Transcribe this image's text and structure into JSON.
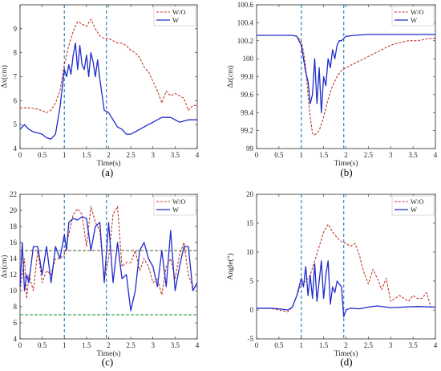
{
  "colors": {
    "wo": "#c0392b",
    "w": "#1f2ccc",
    "vline": "#2e86c1",
    "green": "#1e8c2e",
    "olive": "#4d5a1f",
    "axis": "#262626"
  },
  "chart_data": [
    {
      "type": "line",
      "caption": "(a)",
      "xlabel": "Time(s)",
      "ylabel": "Δx(cm)",
      "xlim": [
        0,
        4
      ],
      "ylim": [
        4,
        10
      ],
      "xticks": [
        "0",
        "0.5",
        "1",
        "1.5",
        "2",
        "2.5",
        "3",
        "3.5",
        "4"
      ],
      "yticks": [
        "4",
        "5",
        "6",
        "7",
        "8",
        "9"
      ],
      "legend_position": "top-right",
      "vlines": [
        1,
        1.95
      ],
      "series": [
        {
          "name": "W/O",
          "style": "dashed",
          "x": [
            0,
            0.2,
            0.4,
            0.6,
            0.7,
            0.8,
            0.9,
            1.0,
            1.1,
            1.2,
            1.3,
            1.4,
            1.5,
            1.6,
            1.7,
            1.8,
            1.9,
            2.0,
            2.1,
            2.2,
            2.3,
            2.4,
            2.5,
            2.6,
            2.7,
            2.8,
            2.9,
            3.0,
            3.1,
            3.2,
            3.3,
            3.4,
            3.5,
            3.6,
            3.7,
            3.8,
            3.9,
            4.0
          ],
          "y": [
            5.7,
            5.7,
            5.65,
            5.5,
            5.6,
            5.9,
            6.4,
            7.5,
            8.3,
            8.9,
            9.3,
            9.2,
            9.1,
            9.4,
            9.0,
            8.7,
            8.6,
            8.6,
            8.5,
            8.4,
            8.4,
            8.3,
            8.1,
            8.0,
            7.8,
            7.4,
            7.2,
            6.8,
            6.4,
            5.9,
            6.4,
            6.2,
            6.3,
            6.2,
            6.1,
            5.6,
            5.8,
            5.8
          ]
        },
        {
          "name": "W",
          "style": "solid",
          "x": [
            0,
            0.1,
            0.2,
            0.3,
            0.5,
            0.6,
            0.7,
            0.8,
            0.9,
            1.0,
            1.05,
            1.1,
            1.15,
            1.2,
            1.25,
            1.3,
            1.35,
            1.4,
            1.45,
            1.5,
            1.55,
            1.6,
            1.65,
            1.7,
            1.75,
            1.8,
            1.9,
            2.0,
            2.1,
            2.2,
            2.3,
            2.4,
            2.5,
            2.6,
            2.8,
            3.0,
            3.2,
            3.4,
            3.6,
            3.8,
            4.0
          ],
          "y": [
            4.8,
            5.0,
            4.8,
            4.7,
            4.6,
            4.45,
            4.4,
            4.6,
            5.7,
            7.3,
            7.0,
            7.5,
            7.1,
            7.9,
            8.4,
            7.3,
            8.3,
            7.5,
            7.3,
            7.9,
            7.0,
            8.0,
            7.6,
            7.0,
            7.7,
            6.9,
            5.6,
            5.5,
            5.2,
            4.9,
            4.8,
            4.6,
            4.6,
            4.7,
            4.9,
            5.1,
            5.3,
            5.3,
            5.1,
            5.2,
            5.2
          ]
        }
      ]
    },
    {
      "type": "line",
      "caption": "(b)",
      "xlabel": "Time(s)",
      "ylabel": "Δz(cm)",
      "xlim": [
        0,
        4
      ],
      "ylim": [
        99,
        100.6
      ],
      "xticks": [
        "0",
        "0.5",
        "1",
        "1.5",
        "2",
        "2.5",
        "3",
        "3.5",
        "4"
      ],
      "yticks": [
        "99",
        "99.2",
        "99.4",
        "99.6",
        "99.8",
        "100",
        "100.2",
        "100.4",
        "100.6"
      ],
      "legend_position": "top-right",
      "vlines": [
        1,
        1.95
      ],
      "series": [
        {
          "name": "W/O",
          "style": "dashed",
          "x": [
            0,
            0.5,
            0.8,
            0.9,
            1.0,
            1.05,
            1.1,
            1.15,
            1.2,
            1.25,
            1.3,
            1.4,
            1.5,
            1.6,
            1.7,
            1.8,
            1.9,
            2.0,
            2.2,
            2.4,
            2.6,
            2.8,
            3.0,
            3.2,
            3.4,
            3.6,
            3.8,
            4.0
          ],
          "y": [
            100.26,
            100.26,
            100.26,
            100.25,
            100.19,
            100.08,
            99.9,
            99.6,
            99.35,
            99.17,
            99.15,
            99.2,
            99.35,
            99.55,
            99.7,
            99.8,
            99.87,
            99.9,
            99.95,
            100.0,
            100.05,
            100.1,
            100.15,
            100.18,
            100.2,
            100.2,
            100.22,
            100.23
          ]
        },
        {
          "name": "W",
          "style": "solid",
          "x": [
            0,
            0.5,
            0.8,
            0.9,
            1.0,
            1.05,
            1.1,
            1.15,
            1.2,
            1.25,
            1.3,
            1.35,
            1.4,
            1.45,
            1.5,
            1.55,
            1.6,
            1.65,
            1.7,
            1.75,
            1.8,
            1.85,
            1.9,
            2.0,
            2.2,
            2.5,
            3.0,
            3.5,
            4.0
          ],
          "y": [
            100.26,
            100.26,
            100.26,
            100.25,
            100.15,
            100.0,
            99.85,
            99.75,
            99.5,
            99.6,
            100.0,
            99.5,
            99.9,
            99.4,
            99.8,
            99.7,
            100.0,
            99.9,
            100.1,
            100.0,
            100.15,
            100.2,
            100.2,
            100.25,
            100.26,
            100.27,
            100.27,
            100.27,
            100.27
          ]
        }
      ]
    },
    {
      "type": "line",
      "caption": "(c)",
      "xlabel": "Time(s)",
      "ylabel": "Δx(cm)",
      "xlim": [
        0,
        4
      ],
      "ylim": [
        4,
        22
      ],
      "xticks": [
        "0",
        "0.5",
        "1",
        "1.5",
        "2",
        "2.5",
        "3",
        "3.5",
        "4"
      ],
      "yticks": [
        "4",
        "6",
        "8",
        "10",
        "12",
        "14",
        "16",
        "18",
        "20",
        "22"
      ],
      "legend_position": "top-right",
      "vlines": [
        1,
        1.95
      ],
      "hlines": [
        {
          "y": 15,
          "color": "olive"
        },
        {
          "y": 7,
          "color": "green"
        }
      ],
      "series": [
        {
          "name": "W/O",
          "style": "dashed",
          "x": [
            0,
            0.1,
            0.15,
            0.2,
            0.3,
            0.4,
            0.5,
            0.6,
            0.7,
            0.8,
            0.9,
            1.0,
            1.1,
            1.2,
            1.3,
            1.4,
            1.5,
            1.6,
            1.7,
            1.8,
            1.9,
            2.0,
            2.1,
            2.2,
            2.3,
            2.4,
            2.5,
            2.6,
            2.7,
            2.8,
            2.9,
            3.0,
            3.1,
            3.2,
            3.3,
            3.4,
            3.5,
            3.6,
            3.7,
            3.8,
            3.9,
            4.0
          ],
          "y": [
            10,
            14,
            9,
            12,
            10,
            15,
            11,
            12.5,
            12,
            14,
            14,
            14.5,
            17,
            19.5,
            20.2,
            19.5,
            15.5,
            20.5,
            18.5,
            17.5,
            11.5,
            14,
            19.5,
            20.5,
            13,
            13.5,
            13.5,
            15,
            12.5,
            14,
            13,
            11,
            11.5,
            9.5,
            13,
            14,
            11.5,
            14.5,
            16,
            12,
            10.5,
            10.5
          ]
        },
        {
          "name": "W",
          "style": "solid",
          "x": [
            0,
            0.05,
            0.1,
            0.15,
            0.2,
            0.3,
            0.4,
            0.5,
            0.6,
            0.7,
            0.8,
            0.9,
            1.0,
            1.05,
            1.1,
            1.2,
            1.3,
            1.4,
            1.5,
            1.6,
            1.7,
            1.8,
            1.9,
            2.0,
            2.1,
            2.2,
            2.3,
            2.4,
            2.5,
            2.6,
            2.7,
            2.8,
            2.9,
            3.0,
            3.1,
            3.2,
            3.3,
            3.4,
            3.5,
            3.6,
            3.7,
            3.8,
            3.9,
            4.0
          ],
          "y": [
            10.5,
            16,
            10,
            12,
            11,
            15.5,
            15.5,
            12,
            15.5,
            11,
            15.5,
            14,
            17,
            15,
            18.5,
            19,
            18.8,
            19.2,
            19,
            15,
            18,
            18.5,
            11,
            18.5,
            11,
            16,
            11.5,
            12,
            7.5,
            10,
            15,
            16,
            14,
            13,
            10.5,
            15,
            10.5,
            17.5,
            10,
            13,
            15.5,
            15.5,
            10,
            11
          ]
        }
      ]
    },
    {
      "type": "line",
      "caption": "(d)",
      "xlabel": "Time(s)",
      "ylabel": "Angle(°)",
      "xlim": [
        0,
        4
      ],
      "ylim": [
        -5,
        20
      ],
      "xticks": [
        "0",
        "0.5",
        "1",
        "1.5",
        "2",
        "2.5",
        "3",
        "3.5",
        "4"
      ],
      "yticks": [
        "-5",
        "0",
        "5",
        "10",
        "15",
        "20"
      ],
      "legend_position": "top-right",
      "vlines": [
        1,
        1.95
      ],
      "series": [
        {
          "name": "W/O",
          "style": "dashed",
          "x": [
            0,
            0.3,
            0.5,
            0.7,
            0.8,
            0.9,
            1.0,
            1.1,
            1.2,
            1.3,
            1.4,
            1.5,
            1.6,
            1.7,
            1.8,
            1.9,
            2.0,
            2.1,
            2.2,
            2.3,
            2.4,
            2.5,
            2.6,
            2.7,
            2.8,
            2.9,
            3.0,
            3.1,
            3.2,
            3.3,
            3.4,
            3.5,
            3.6,
            3.7,
            3.8,
            3.9,
            4.0
          ],
          "y": [
            0.3,
            0.3,
            0.0,
            -0.3,
            0.5,
            2.5,
            4.5,
            5.0,
            6.0,
            8.5,
            11.0,
            13.5,
            14.8,
            13.5,
            12.5,
            11.8,
            11.5,
            11.0,
            11.5,
            9.5,
            6.5,
            4.5,
            7.0,
            5.5,
            3.5,
            5.5,
            1.5,
            2.0,
            2.5,
            2.0,
            1.5,
            2.5,
            2.0,
            2.0,
            3.0,
            0.5,
            0.5
          ]
        },
        {
          "name": "W",
          "style": "solid",
          "x": [
            0,
            0.3,
            0.5,
            0.7,
            0.8,
            0.9,
            1.0,
            1.05,
            1.1,
            1.15,
            1.2,
            1.25,
            1.3,
            1.35,
            1.4,
            1.45,
            1.5,
            1.55,
            1.6,
            1.65,
            1.7,
            1.75,
            1.8,
            1.85,
            1.9,
            1.95,
            2.0,
            2.1,
            2.3,
            2.5,
            2.7,
            3.0,
            3.3,
            3.6,
            4.0
          ],
          "y": [
            0.3,
            0.3,
            0.2,
            0.0,
            0.5,
            2.5,
            5.5,
            4.0,
            7.5,
            2.5,
            6.0,
            2.0,
            8.0,
            1.5,
            5.0,
            8.5,
            2.0,
            6.0,
            8.5,
            1.0,
            4.0,
            3.0,
            5.0,
            4.5,
            4.0,
            -1.2,
            0.0,
            0.3,
            0.2,
            0.5,
            0.7,
            0.4,
            0.5,
            0.6,
            0.5
          ]
        }
      ]
    }
  ]
}
